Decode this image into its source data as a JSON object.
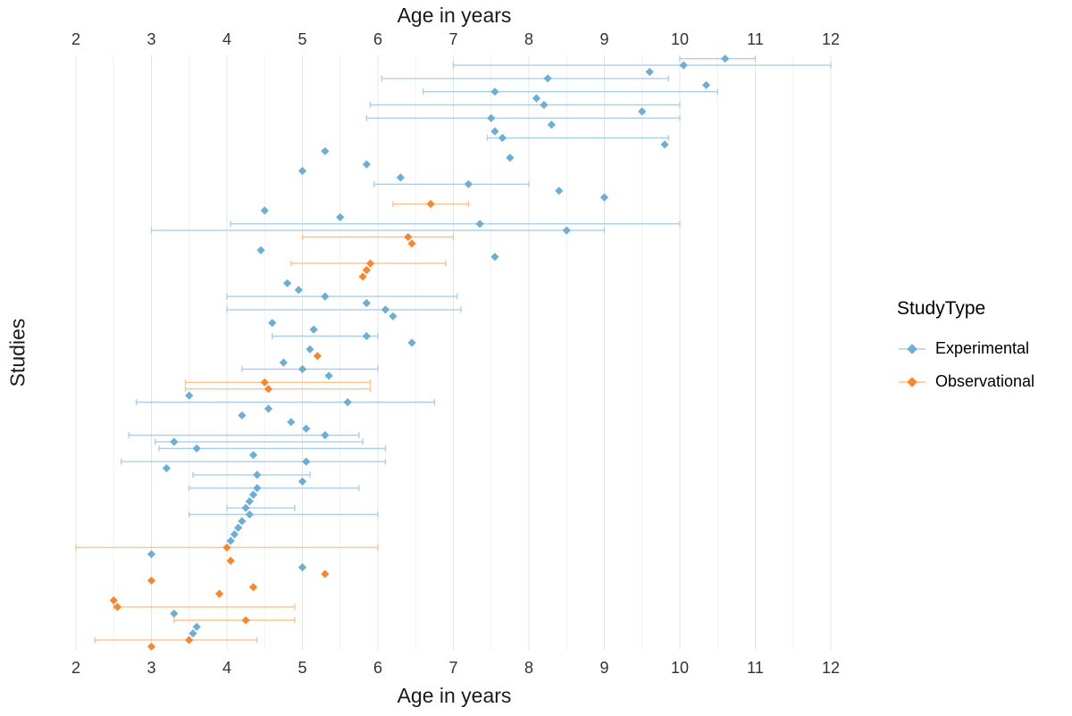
{
  "chart_data": {
    "type": "scatter",
    "subtype": "forest-pointrange",
    "title": "",
    "xlabel": "Age in years",
    "xlabel_top": "Age in years",
    "ylabel": "Studies",
    "x_ticks": [
      2,
      3,
      4,
      5,
      6,
      7,
      8,
      9,
      10,
      11,
      12
    ],
    "xlim": [
      1.5,
      12.5
    ],
    "grid": "vertical major at integers, minor at halves",
    "legend_position": "right",
    "type_key": {
      "E": "Experimental",
      "O": "Observational"
    },
    "colors": {
      "Experimental": {
        "point": "#6BAED6",
        "bar": "#AECFE8"
      },
      "Observational": {
        "point": "#F8872D",
        "bar": "#FBC38E"
      },
      "grid_major": "#E4E4E4",
      "grid_minor": "#F1F1F1",
      "tick_label": "#333333",
      "axis_title": "#1a1a1a"
    },
    "studies": [
      {
        "m": 10.6,
        "lo": 10.0,
        "hi": 11.0,
        "t": "E"
      },
      {
        "m": 10.05,
        "lo": 7.0,
        "hi": 12.0,
        "t": "E"
      },
      {
        "m": 9.6,
        "t": "E"
      },
      {
        "m": 8.25,
        "lo": 6.05,
        "hi": 9.85,
        "t": "E"
      },
      {
        "m": 10.35,
        "t": "E"
      },
      {
        "m": 7.55,
        "lo": 6.6,
        "hi": 10.5,
        "t": "E"
      },
      {
        "m": 8.1,
        "t": "E"
      },
      {
        "m": 8.2,
        "lo": 5.9,
        "hi": 10.0,
        "t": "E"
      },
      {
        "m": 9.5,
        "t": "E"
      },
      {
        "m": 7.5,
        "lo": 5.85,
        "hi": 10.0,
        "t": "E"
      },
      {
        "m": 8.3,
        "t": "E"
      },
      {
        "m": 7.55,
        "t": "E"
      },
      {
        "m": 7.65,
        "lo": 7.45,
        "hi": 9.85,
        "t": "E"
      },
      {
        "m": 9.8,
        "t": "E"
      },
      {
        "m": 5.3,
        "t": "E"
      },
      {
        "m": 7.75,
        "t": "E"
      },
      {
        "m": 5.85,
        "t": "E"
      },
      {
        "m": 5.0,
        "t": "E"
      },
      {
        "m": 6.3,
        "t": "E"
      },
      {
        "m": 7.2,
        "lo": 5.95,
        "hi": 8.0,
        "t": "E"
      },
      {
        "m": 8.4,
        "t": "E"
      },
      {
        "m": 9.0,
        "t": "E"
      },
      {
        "m": 6.7,
        "lo": 6.2,
        "hi": 7.2,
        "t": "O"
      },
      {
        "m": 4.5,
        "t": "E"
      },
      {
        "m": 5.5,
        "t": "E"
      },
      {
        "m": 7.35,
        "lo": 4.05,
        "hi": 10.0,
        "t": "E"
      },
      {
        "m": 8.5,
        "lo": 3.0,
        "hi": 9.0,
        "t": "E"
      },
      {
        "m": 6.4,
        "lo": 5.0,
        "hi": 7.0,
        "t": "O"
      },
      {
        "m": 6.45,
        "t": "O"
      },
      {
        "m": 4.45,
        "t": "E"
      },
      {
        "m": 7.55,
        "t": "E"
      },
      {
        "m": 5.9,
        "lo": 4.85,
        "hi": 6.9,
        "t": "O"
      },
      {
        "m": 5.85,
        "t": "O"
      },
      {
        "m": 5.8,
        "t": "O"
      },
      {
        "m": 4.8,
        "t": "E"
      },
      {
        "m": 4.95,
        "t": "E"
      },
      {
        "m": 5.3,
        "lo": 4.0,
        "hi": 7.05,
        "t": "E"
      },
      {
        "m": 5.85,
        "t": "E"
      },
      {
        "m": 6.1,
        "lo": 4.0,
        "hi": 7.1,
        "t": "E"
      },
      {
        "m": 6.2,
        "t": "E"
      },
      {
        "m": 4.6,
        "t": "E"
      },
      {
        "m": 5.15,
        "t": "E"
      },
      {
        "m": 5.85,
        "lo": 4.6,
        "hi": 6.0,
        "t": "E"
      },
      {
        "m": 6.45,
        "t": "E"
      },
      {
        "m": 5.1,
        "t": "E"
      },
      {
        "m": 5.2,
        "t": "O"
      },
      {
        "m": 4.75,
        "t": "E"
      },
      {
        "m": 5.0,
        "lo": 4.2,
        "hi": 6.0,
        "t": "E"
      },
      {
        "m": 5.35,
        "t": "E"
      },
      {
        "m": 4.5,
        "lo": 3.45,
        "hi": 5.9,
        "t": "O"
      },
      {
        "m": 4.55,
        "lo": 3.45,
        "hi": 5.9,
        "t": "O"
      },
      {
        "m": 3.5,
        "t": "E"
      },
      {
        "m": 5.6,
        "lo": 2.8,
        "hi": 6.75,
        "t": "E"
      },
      {
        "m": 4.55,
        "t": "E"
      },
      {
        "m": 4.2,
        "t": "E"
      },
      {
        "m": 4.85,
        "t": "E"
      },
      {
        "m": 5.05,
        "t": "E"
      },
      {
        "m": 5.3,
        "lo": 2.7,
        "hi": 5.75,
        "t": "E"
      },
      {
        "m": 3.3,
        "lo": 3.05,
        "hi": 5.8,
        "t": "E"
      },
      {
        "m": 3.6,
        "lo": 3.1,
        "hi": 6.1,
        "t": "E"
      },
      {
        "m": 4.35,
        "t": "E"
      },
      {
        "m": 5.05,
        "lo": 2.6,
        "hi": 6.1,
        "t": "E"
      },
      {
        "m": 3.2,
        "t": "E"
      },
      {
        "m": 4.4,
        "lo": 3.55,
        "hi": 5.1,
        "t": "E"
      },
      {
        "m": 5.0,
        "t": "E"
      },
      {
        "m": 4.4,
        "lo": 3.5,
        "hi": 5.75,
        "t": "E"
      },
      {
        "m": 4.35,
        "t": "E"
      },
      {
        "m": 4.3,
        "t": "E"
      },
      {
        "m": 4.25,
        "lo": 4.0,
        "hi": 4.9,
        "t": "E"
      },
      {
        "m": 4.3,
        "lo": 3.5,
        "hi": 6.0,
        "t": "E"
      },
      {
        "m": 4.2,
        "t": "E"
      },
      {
        "m": 4.15,
        "t": "E"
      },
      {
        "m": 4.1,
        "t": "E"
      },
      {
        "m": 4.05,
        "t": "E"
      },
      {
        "m": 4.0,
        "lo": 2.0,
        "hi": 6.0,
        "t": "O"
      },
      {
        "m": 3.0,
        "t": "E"
      },
      {
        "m": 4.05,
        "t": "O"
      },
      {
        "m": 5.0,
        "t": "E"
      },
      {
        "m": 5.3,
        "t": "O"
      },
      {
        "m": 3.0,
        "t": "O"
      },
      {
        "m": 4.35,
        "t": "O"
      },
      {
        "m": 3.9,
        "t": "O"
      },
      {
        "m": 2.5,
        "t": "O"
      },
      {
        "m": 2.55,
        "lo": 2.5,
        "hi": 4.9,
        "t": "O"
      },
      {
        "m": 3.3,
        "t": "E"
      },
      {
        "m": 4.25,
        "lo": 3.3,
        "hi": 4.9,
        "t": "O"
      },
      {
        "m": 3.6,
        "t": "E"
      },
      {
        "m": 3.55,
        "t": "E"
      },
      {
        "m": 3.5,
        "lo": 2.25,
        "hi": 4.4,
        "t": "O"
      },
      {
        "m": 3.0,
        "t": "O"
      }
    ]
  },
  "legend": {
    "title": "StudyType",
    "items": [
      {
        "label": "Experimental",
        "type": "Experimental"
      },
      {
        "label": "Observational",
        "type": "Observational"
      }
    ]
  }
}
